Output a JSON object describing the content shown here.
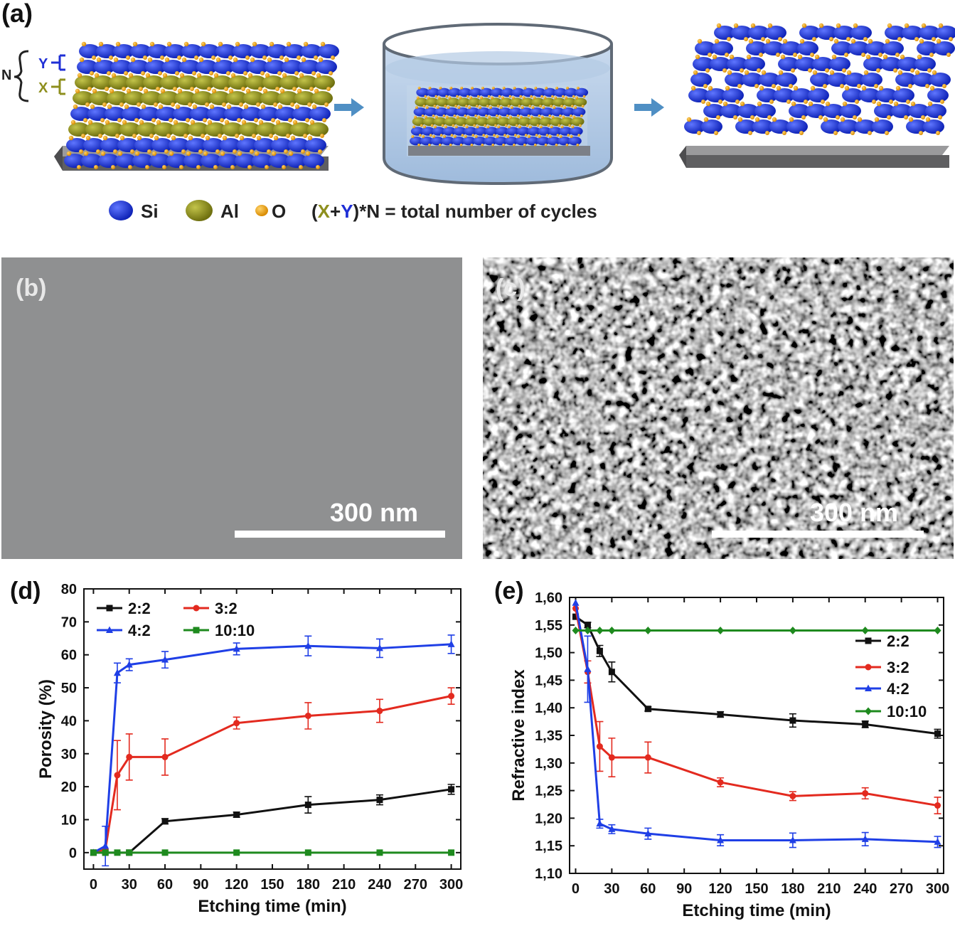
{
  "panel_a": {
    "label": "(a)",
    "stack_labels": {
      "N": "N",
      "Y": "Y",
      "X": "X"
    },
    "legend": [
      {
        "name": "Si",
        "color": "#1f2fd6"
      },
      {
        "name": "Al",
        "color": "#8e8f1e"
      },
      {
        "name": "O",
        "color": "#f2a51a"
      }
    ],
    "formula": {
      "open": "(",
      "x": "X",
      "plus": "+",
      "y": "Y",
      "rest": ")*N = total number of cycles"
    },
    "colors": {
      "si": "#1f2fd6",
      "al": "#8e8f1e",
      "o": "#f2a51a",
      "substrate": "#6e6e70",
      "arrow": "#4f8fc4",
      "liquid": "#b9cfe6"
    }
  },
  "panel_b": {
    "label": "(b)",
    "scale_bar": "300 nm"
  },
  "panel_c": {
    "label": "(c)",
    "scale_bar": "300 nm"
  },
  "chart_data": [
    {
      "panel": "(d)",
      "type": "line",
      "xlabel": "Etching time (min)",
      "ylabel": "Porosity (%)",
      "xlim": [
        -8,
        308
      ],
      "ylim": [
        -5,
        80
      ],
      "xticks": [
        "0",
        "30",
        "60",
        "90",
        "120",
        "150",
        "180",
        "210",
        "240",
        "270",
        "300"
      ],
      "yticks": [
        "0",
        "10",
        "20",
        "30",
        "40",
        "50",
        "60",
        "70",
        "80"
      ],
      "legend_position": "top-left",
      "series": [
        {
          "name": "2:2",
          "color": "#111111",
          "marker": "square",
          "x": [
            0,
            10,
            30,
            60,
            120,
            180,
            240,
            300
          ],
          "y": [
            0,
            0,
            0,
            9.5,
            11.5,
            14.5,
            16,
            19.2
          ],
          "err": [
            0,
            0,
            0,
            0.8,
            0.8,
            2.5,
            1.5,
            1.5
          ]
        },
        {
          "name": "3:2",
          "color": "#e32a1f",
          "marker": "circle",
          "x": [
            0,
            10,
            20,
            30,
            60,
            120,
            180,
            240,
            300
          ],
          "y": [
            0,
            1,
            23.5,
            29,
            29,
            39.3,
            41.5,
            43,
            47.5
          ],
          "err": [
            0,
            0,
            10.5,
            7,
            5.5,
            1.8,
            4,
            3.5,
            2.5
          ]
        },
        {
          "name": "4:2",
          "color": "#1f3fe6",
          "marker": "triangle",
          "x": [
            0,
            10,
            20,
            30,
            60,
            120,
            180,
            240,
            300
          ],
          "y": [
            0,
            2,
            54.5,
            57,
            58.5,
            61.8,
            62.7,
            62,
            63.2
          ],
          "err": [
            0,
            6,
            3,
            1.8,
            2.5,
            1.8,
            3,
            2.8,
            2.8
          ]
        },
        {
          "name": "10:10",
          "color": "#1e8a1e",
          "marker": "square",
          "x": [
            0,
            10,
            20,
            30,
            60,
            120,
            180,
            240,
            300
          ],
          "y": [
            0,
            0,
            0,
            0,
            0,
            0,
            0,
            0,
            0
          ],
          "err": [
            0,
            0,
            0,
            0,
            0,
            0,
            0,
            0,
            0
          ]
        }
      ]
    },
    {
      "panel": "(e)",
      "type": "line",
      "xlabel": "Etching time (min)",
      "ylabel": "Refractive index",
      "xlim": [
        -5,
        305
      ],
      "ylim": [
        1.1,
        1.6
      ],
      "xticks": [
        "0",
        "30",
        "60",
        "90",
        "120",
        "150",
        "180",
        "210",
        "240",
        "270",
        "300"
      ],
      "yticks": [
        "1,10",
        "1,15",
        "1,20",
        "1,25",
        "1,30",
        "1,35",
        "1,40",
        "1,45",
        "1,50",
        "1,55",
        "1,60"
      ],
      "legend_position": "top-right",
      "series": [
        {
          "name": "2:2",
          "color": "#111111",
          "marker": "square",
          "x": [
            0,
            10,
            20,
            30,
            60,
            120,
            180,
            240,
            300
          ],
          "y": [
            1.565,
            1.55,
            1.503,
            1.465,
            1.398,
            1.388,
            1.377,
            1.37,
            1.353
          ],
          "err": [
            0,
            0.005,
            0.01,
            0.018,
            0.004,
            0.005,
            0.012,
            0.006,
            0.008
          ]
        },
        {
          "name": "3:2",
          "color": "#e32a1f",
          "marker": "circle",
          "x": [
            0,
            10,
            20,
            30,
            60,
            120,
            180,
            240,
            300
          ],
          "y": [
            1.58,
            1.465,
            1.33,
            1.31,
            1.31,
            1.265,
            1.24,
            1.245,
            1.223
          ],
          "err": [
            0,
            0.02,
            0.045,
            0.035,
            0.028,
            0.008,
            0.008,
            0.01,
            0.015
          ]
        },
        {
          "name": "4:2",
          "color": "#1f3fe6",
          "marker": "triangle",
          "x": [
            0,
            10,
            20,
            30,
            60,
            120,
            180,
            240,
            300
          ],
          "y": [
            1.59,
            1.47,
            1.19,
            1.18,
            1.172,
            1.16,
            1.16,
            1.162,
            1.157
          ],
          "err": [
            0,
            0.06,
            0.008,
            0.008,
            0.01,
            0.01,
            0.013,
            0.012,
            0.01
          ]
        },
        {
          "name": "10:10",
          "color": "#1e8a1e",
          "marker": "diamond",
          "x": [
            0,
            10,
            20,
            30,
            60,
            120,
            180,
            240,
            300
          ],
          "y": [
            1.54,
            1.54,
            1.54,
            1.54,
            1.54,
            1.54,
            1.54,
            1.54,
            1.54
          ],
          "err": [
            0,
            0,
            0,
            0,
            0,
            0,
            0,
            0,
            0
          ]
        }
      ]
    }
  ]
}
